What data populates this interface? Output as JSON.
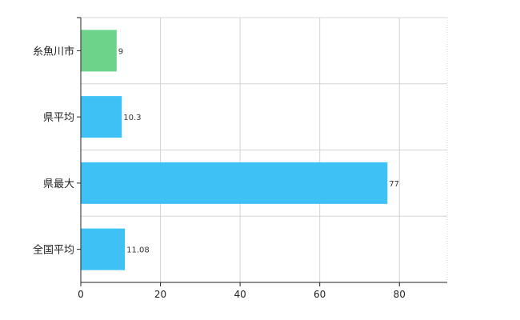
{
  "chart_data": {
    "type": "bar",
    "orientation": "horizontal",
    "categories": [
      "糸魚川市",
      "県平均",
      "県最大",
      "全国平均"
    ],
    "values": [
      9,
      10.3,
      77,
      11.08
    ],
    "value_labels": [
      "9",
      "10.3",
      "77",
      "11.08"
    ],
    "colors": [
      "#6dd38a",
      "#3ec1f5",
      "#3ec1f5",
      "#3ec1f5"
    ],
    "xlim": [
      0,
      92
    ],
    "xticks": [
      0,
      20,
      40,
      60,
      80
    ],
    "grid": true,
    "title": "",
    "xlabel": "",
    "ylabel": ""
  }
}
